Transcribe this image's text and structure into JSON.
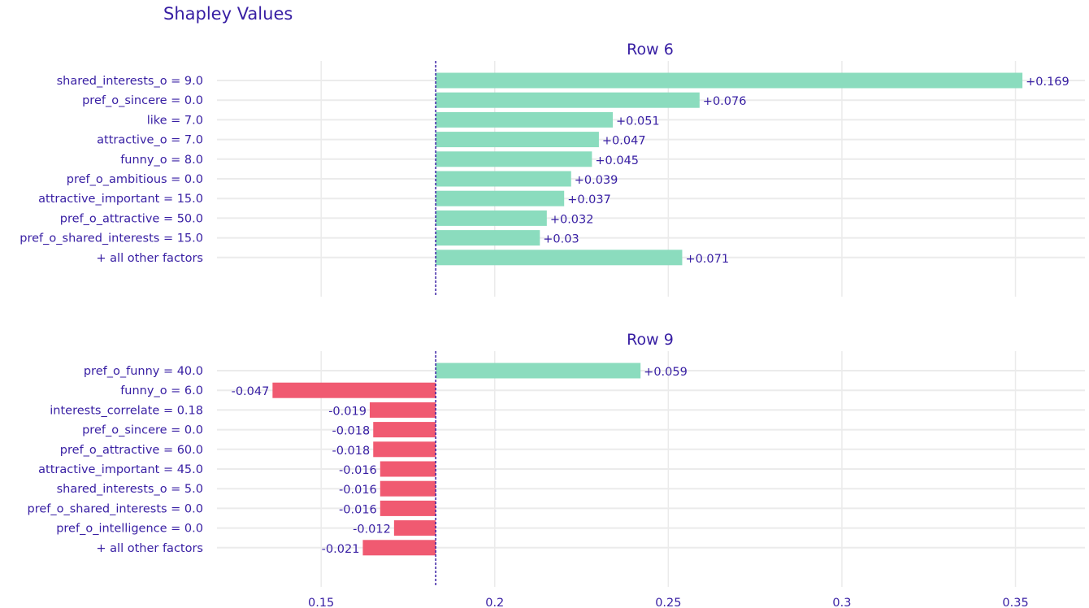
{
  "title": "Shapley Values",
  "colors": {
    "positive": "#8bdcbe",
    "negative": "#f05a71",
    "text": "#371ea3",
    "grid": "#ebebeb",
    "baseline": "#371ea3"
  },
  "chart_data": [
    {
      "type": "bar",
      "orientation": "horizontal",
      "subtitle": "Row 6",
      "baseline": 0.183,
      "xlim": [
        0.12,
        0.37
      ],
      "xticks": [
        0.15,
        0.2,
        0.25,
        0.3,
        0.35
      ],
      "xtick_labels": [
        "0.15",
        "0.2",
        "0.25",
        "0.3",
        "0.35"
      ],
      "grid": true,
      "categories": [
        "shared_interests_o = 9.0",
        "pref_o_sincere = 0.0",
        "like = 7.0",
        "attractive_o = 7.0",
        "funny_o = 8.0",
        "pref_o_ambitious = 0.0",
        "attractive_important = 15.0",
        "pref_o_attractive = 50.0",
        "pref_o_shared_interests = 15.0",
        "+ all other factors"
      ],
      "values": [
        0.169,
        0.076,
        0.051,
        0.047,
        0.045,
        0.039,
        0.037,
        0.032,
        0.03,
        0.071
      ],
      "labels": [
        "+0.169",
        "+0.076",
        "+0.051",
        "+0.047",
        "+0.045",
        "+0.039",
        "+0.037",
        "+0.032",
        "+0.03",
        "+0.071"
      ]
    },
    {
      "type": "bar",
      "orientation": "horizontal",
      "subtitle": "Row 9",
      "baseline": 0.183,
      "xlim": [
        0.12,
        0.37
      ],
      "xticks": [
        0.15,
        0.2,
        0.25,
        0.3,
        0.35
      ],
      "xtick_labels": [
        "0.15",
        "0.2",
        "0.25",
        "0.3",
        "0.35"
      ],
      "grid": true,
      "categories": [
        "pref_o_funny = 40.0",
        "funny_o = 6.0",
        "interests_correlate = 0.18",
        "pref_o_sincere = 0.0",
        "pref_o_attractive = 60.0",
        "attractive_important = 45.0",
        "shared_interests_o = 5.0",
        "pref_o_shared_interests = 0.0",
        "pref_o_intelligence = 0.0",
        "+ all other factors"
      ],
      "values": [
        0.059,
        -0.047,
        -0.019,
        -0.018,
        -0.018,
        -0.016,
        -0.016,
        -0.016,
        -0.012,
        -0.021
      ],
      "labels": [
        "+0.059",
        "-0.047",
        "-0.019",
        "-0.018",
        "-0.018",
        "-0.016",
        "-0.016",
        "-0.016",
        "-0.012",
        "-0.021"
      ]
    }
  ]
}
